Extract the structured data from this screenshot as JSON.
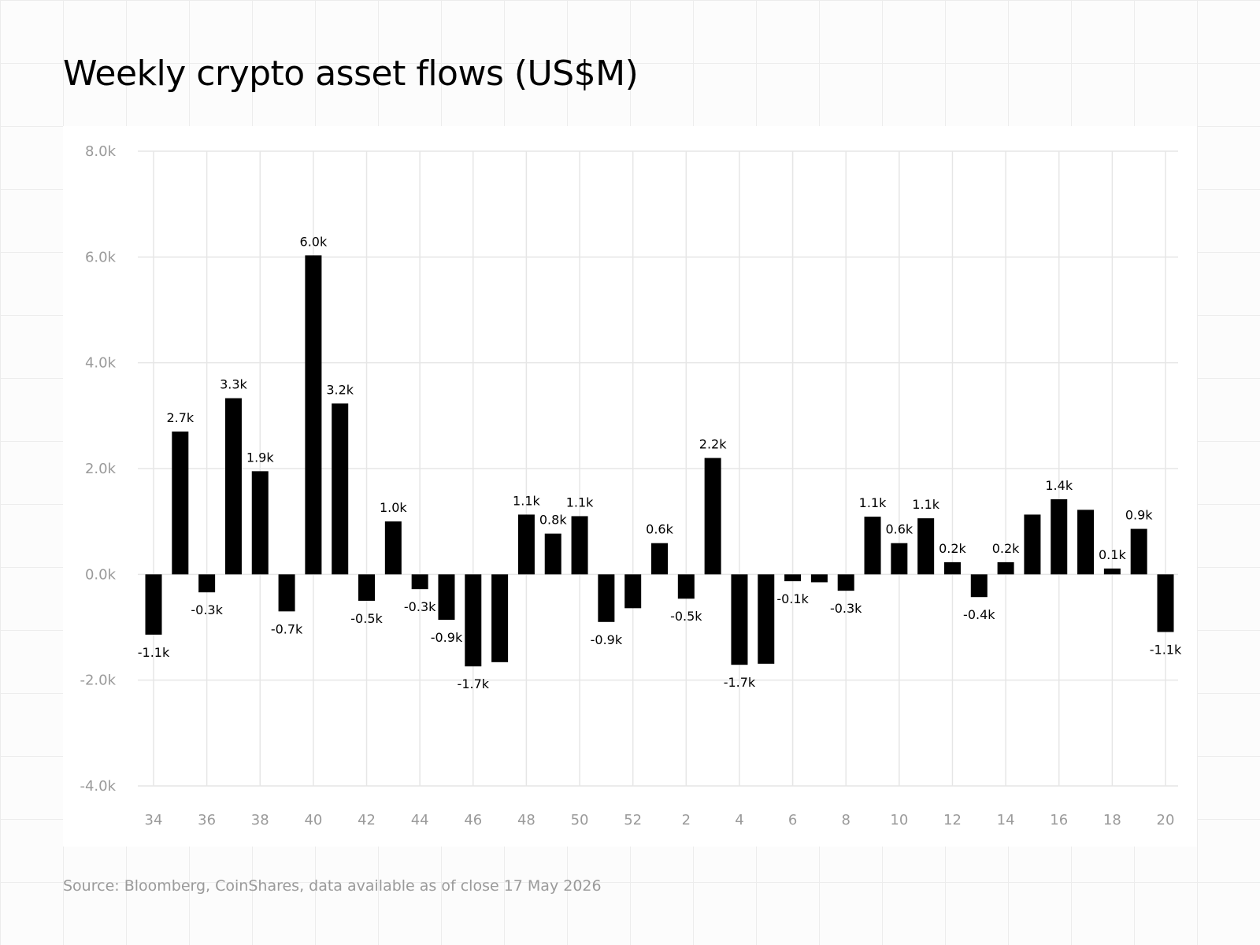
{
  "title": "Weekly crypto asset flows (US$M)",
  "source": "Source: Bloomberg, CoinShares, data available as of close 17 May 2026",
  "colors": {
    "bar": "#000000",
    "grid": "#e6e6e6",
    "tick_text": "#9a9a9a",
    "label_text": "#000000"
  },
  "chart_data": {
    "type": "bar",
    "title": "Weekly crypto asset flows (US$M)",
    "xlabel": "",
    "ylabel": "",
    "ylim": [
      -4000,
      8000
    ],
    "yticks": [
      8000,
      6000,
      4000,
      2000,
      0,
      -2000,
      -4000
    ],
    "ytick_labels": [
      "8.0k",
      "6.0k",
      "4.0k",
      "2.0k",
      "0.0k",
      "-2.0k",
      "-4.0k"
    ],
    "grid": true,
    "categories": [
      "34",
      "35",
      "36",
      "37",
      "38",
      "39",
      "40",
      "41",
      "42",
      "43",
      "44",
      "45",
      "46",
      "47",
      "48",
      "49",
      "50",
      "51",
      "52",
      "1",
      "2",
      "3",
      "4",
      "5",
      "6",
      "7",
      "8",
      "9",
      "10",
      "11",
      "12",
      "13",
      "14",
      "15",
      "16",
      "17",
      "18",
      "19",
      "20"
    ],
    "xtick_labels": [
      "34",
      "",
      "36",
      "",
      "38",
      "",
      "40",
      "",
      "42",
      "",
      "44",
      "",
      "46",
      "",
      "48",
      "",
      "50",
      "",
      "52",
      "",
      "2",
      "",
      "4",
      "",
      "6",
      "",
      "8",
      "",
      "10",
      "",
      "12",
      "",
      "14",
      "",
      "16",
      "",
      "18",
      "",
      "20"
    ],
    "values": [
      -1140,
      2700,
      -340,
      3330,
      1950,
      -700,
      6030,
      3230,
      -500,
      1000,
      -280,
      -860,
      -1740,
      -1660,
      1130,
      770,
      1100,
      -900,
      -640,
      590,
      -460,
      2200,
      -1710,
      -1690,
      -130,
      -150,
      -310,
      1090,
      590,
      1060,
      230,
      -430,
      230,
      1130,
      1420,
      1220,
      110,
      860,
      -1090
    ],
    "data_labels": [
      "-1.1k",
      "2.7k",
      "-0.3k",
      "3.3k",
      "1.9k",
      "-0.7k",
      "6.0k",
      "3.2k",
      "-0.5k",
      "1.0k",
      "-0.3k",
      "-0.9k",
      "-1.7k",
      "",
      "1.1k",
      "0.8k",
      "1.1k",
      "-0.9k",
      "",
      "0.6k",
      "-0.5k",
      "2.2k",
      "-1.7k",
      "",
      "-0.1k",
      "",
      "-0.3k",
      "1.1k",
      "0.6k",
      "1.1k",
      "0.2k",
      "-0.4k",
      "0.2k",
      "",
      "1.4k",
      "",
      "0.1k",
      "0.9k",
      "-1.1k"
    ]
  }
}
